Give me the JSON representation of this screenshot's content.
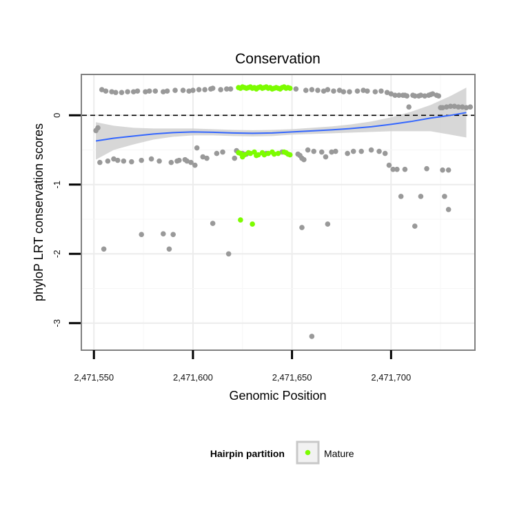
{
  "chart_data": {
    "type": "scatter",
    "title": "Conservation",
    "xlabel": "Genomic Position",
    "ylabel": "phyloP LRT conservation scores",
    "xlim": [
      2471544,
      2471742
    ],
    "ylim": [
      -3.38,
      0.58
    ],
    "x_ticks": [
      2471550,
      2471600,
      2471650,
      2471700
    ],
    "x_tick_labels": [
      "2,471,550",
      "2,471,600",
      "2,471,650",
      "2,471,700"
    ],
    "y_ticks": [
      0,
      -1,
      -2,
      -3
    ],
    "y_tick_labels": [
      "0",
      "-1",
      "-2",
      "-3"
    ],
    "grid": true,
    "reference_line": {
      "y": 0,
      "style": "dashed"
    },
    "legend": {
      "title": "Hairpin partition",
      "position": "bottom",
      "entries": [
        "Mature"
      ]
    },
    "colors": {
      "other": "#999999",
      "mature": "#7cfc00",
      "smooth": "#3366ff",
      "band": "#d0d0d0"
    },
    "series": [
      {
        "points": [
          [
            2471551,
            -0.22
          ],
          [
            2471552,
            -0.18
          ],
          [
            2471553,
            -0.68
          ],
          [
            2471554,
            0.37
          ],
          [
            2471556,
            0.35
          ],
          [
            2471557,
            -0.66
          ],
          [
            2471559,
            0.34
          ],
          [
            2471560,
            -0.63
          ],
          [
            2471561,
            0.33
          ],
          [
            2471562,
            -0.65
          ],
          [
            2471564,
            0.33
          ],
          [
            2471565,
            -0.66
          ],
          [
            2471567,
            0.34
          ],
          [
            2471569,
            -0.67
          ],
          [
            2471570,
            0.34
          ],
          [
            2471572,
            0.35
          ],
          [
            2471574,
            -0.65
          ],
          [
            2471576,
            0.34
          ],
          [
            2471578,
            0.35
          ],
          [
            2471579,
            -0.63
          ],
          [
            2471581,
            0.35
          ],
          [
            2471583,
            -0.66
          ],
          [
            2471585,
            0.34
          ],
          [
            2471587,
            0.35
          ],
          [
            2471589,
            -0.68
          ],
          [
            2471591,
            0.36
          ],
          [
            2471592,
            -0.66
          ],
          [
            2471593,
            -0.65
          ],
          [
            2471595,
            0.36
          ],
          [
            2471596,
            -0.64
          ],
          [
            2471597,
            -0.66
          ],
          [
            2471598,
            0.35
          ],
          [
            2471599,
            -0.68
          ],
          [
            2471600,
            0.36
          ],
          [
            2471601,
            -0.72
          ],
          [
            2471602,
            -0.47
          ],
          [
            2471603,
            0.37
          ],
          [
            2471605,
            -0.6
          ],
          [
            2471606,
            0.37
          ],
          [
            2471607,
            -0.62
          ],
          [
            2471609,
            0.38
          ],
          [
            2471610,
            0.39
          ],
          [
            2471612,
            -0.55
          ],
          [
            2471614,
            0.37
          ],
          [
            2471615,
            -0.53
          ],
          [
            2471617,
            0.38
          ],
          [
            2471619,
            0.38
          ],
          [
            2471621,
            -0.62
          ],
          [
            2471622,
            -0.51
          ],
          [
            2471625,
            -0.55
          ],
          [
            2471627,
            -0.56
          ],
          [
            2471637,
            -0.55
          ],
          [
            2471645,
            -0.53
          ],
          [
            2471652,
            0.38
          ],
          [
            2471653,
            -0.56
          ],
          [
            2471654,
            -0.58
          ],
          [
            2471655,
            -0.62
          ],
          [
            2471656,
            -0.64
          ],
          [
            2471657,
            0.36
          ],
          [
            2471658,
            -0.5
          ],
          [
            2471660,
            0.37
          ],
          [
            2471661,
            -0.52
          ],
          [
            2471663,
            0.36
          ],
          [
            2471665,
            -0.53
          ],
          [
            2471666,
            0.35
          ],
          [
            2471667,
            -0.6
          ],
          [
            2471668,
            0.37
          ],
          [
            2471670,
            -0.53
          ],
          [
            2471671,
            0.35
          ],
          [
            2471672,
            -0.52
          ],
          [
            2471674,
            0.36
          ],
          [
            2471676,
            0.34
          ],
          [
            2471678,
            -0.55
          ],
          [
            2471679,
            0.34
          ],
          [
            2471681,
            -0.52
          ],
          [
            2471683,
            0.35
          ],
          [
            2471685,
            -0.52
          ],
          [
            2471686,
            0.36
          ],
          [
            2471688,
            0.35
          ],
          [
            2471690,
            -0.5
          ],
          [
            2471692,
            0.34
          ],
          [
            2471694,
            -0.52
          ],
          [
            2471695,
            0.35
          ],
          [
            2471697,
            -0.55
          ],
          [
            2471698,
            0.33
          ],
          [
            2471699,
            -0.72
          ],
          [
            2471700,
            0.31
          ],
          [
            2471701,
            -0.78
          ],
          [
            2471702,
            0.29
          ],
          [
            2471703,
            -0.78
          ],
          [
            2471704,
            0.29
          ],
          [
            2471706,
            0.29
          ],
          [
            2471707,
            0.29
          ],
          [
            2471708,
            0.28
          ],
          [
            2471709,
            0.12
          ],
          [
            2471711,
            0.29
          ],
          [
            2471712,
            0.28
          ],
          [
            2471714,
            0.28
          ],
          [
            2471715,
            0.29
          ],
          [
            2471717,
            0.28
          ],
          [
            2471719,
            0.29
          ],
          [
            2471720,
            0.3
          ],
          [
            2471721,
            0.31
          ],
          [
            2471723,
            0.29
          ],
          [
            2471724,
            0.28
          ],
          [
            2471725,
            0.11
          ],
          [
            2471726,
            0.11
          ],
          [
            2471728,
            0.12
          ],
          [
            2471730,
            0.13
          ],
          [
            2471732,
            0.13
          ],
          [
            2471734,
            0.12
          ],
          [
            2471736,
            0.12
          ],
          [
            2471738,
            0.11
          ],
          [
            2471740,
            0.12
          ],
          [
            2471610,
            -1.56
          ],
          [
            2471555,
            -1.93
          ],
          [
            2471574,
            -1.72
          ],
          [
            2471585,
            -1.71
          ],
          [
            2471588,
            -1.93
          ],
          [
            2471590,
            -1.72
          ],
          [
            2471618,
            -2.0
          ],
          [
            2471655,
            -1.62
          ],
          [
            2471668,
            -1.57
          ],
          [
            2471660,
            -3.19
          ],
          [
            2471705,
            -1.17
          ],
          [
            2471715,
            -1.17
          ],
          [
            2471712,
            -1.6
          ],
          [
            2471727,
            -1.17
          ],
          [
            2471729,
            -1.36
          ],
          [
            2471707,
            -0.78
          ],
          [
            2471718,
            -0.77
          ],
          [
            2471726,
            -0.79
          ],
          [
            2471729,
            -0.79
          ]
        ]
      },
      {
        "name": "Mature",
        "points": [
          [
            2471623,
            0.4
          ],
          [
            2471624,
            0.39
          ],
          [
            2471625,
            0.41
          ],
          [
            2471626,
            0.4
          ],
          [
            2471627,
            0.39
          ],
          [
            2471628,
            0.4
          ],
          [
            2471629,
            0.41
          ],
          [
            2471630,
            0.39
          ],
          [
            2471631,
            0.4
          ],
          [
            2471632,
            0.38
          ],
          [
            2471633,
            0.4
          ],
          [
            2471634,
            0.41
          ],
          [
            2471635,
            0.39
          ],
          [
            2471636,
            0.4
          ],
          [
            2471637,
            0.41
          ],
          [
            2471638,
            0.39
          ],
          [
            2471639,
            0.4
          ],
          [
            2471640,
            0.38
          ],
          [
            2471641,
            0.39
          ],
          [
            2471642,
            0.4
          ],
          [
            2471643,
            0.39
          ],
          [
            2471644,
            0.38
          ],
          [
            2471645,
            0.4
          ],
          [
            2471646,
            0.41
          ],
          [
            2471647,
            0.39
          ],
          [
            2471648,
            0.4
          ],
          [
            2471649,
            0.39
          ],
          [
            2471623,
            -0.54
          ],
          [
            2471624,
            -0.55
          ],
          [
            2471625,
            -0.6
          ],
          [
            2471626,
            -0.57
          ],
          [
            2471628,
            -0.54
          ],
          [
            2471629,
            -0.55
          ],
          [
            2471631,
            -0.53
          ],
          [
            2471632,
            -0.58
          ],
          [
            2471633,
            -0.57
          ],
          [
            2471635,
            -0.54
          ],
          [
            2471636,
            -0.57
          ],
          [
            2471638,
            -0.55
          ],
          [
            2471640,
            -0.53
          ],
          [
            2471641,
            -0.56
          ],
          [
            2471643,
            -0.55
          ],
          [
            2471646,
            -0.53
          ],
          [
            2471647,
            -0.54
          ],
          [
            2471648,
            -0.56
          ],
          [
            2471649,
            -0.57
          ],
          [
            2471624,
            -1.51
          ],
          [
            2471630,
            -1.57
          ]
        ]
      }
    ],
    "smooth": {
      "x": [
        2471551,
        2471560,
        2471570,
        2471580,
        2471590,
        2471600,
        2471610,
        2471620,
        2471630,
        2471640,
        2471650,
        2471660,
        2471670,
        2471680,
        2471690,
        2471700,
        2471710,
        2471720,
        2471730,
        2471738
      ],
      "y": [
        -0.37,
        -0.33,
        -0.3,
        -0.27,
        -0.25,
        -0.24,
        -0.245,
        -0.255,
        -0.26,
        -0.255,
        -0.24,
        -0.225,
        -0.21,
        -0.19,
        -0.165,
        -0.13,
        -0.09,
        -0.04,
        0.0,
        0.04
      ],
      "upper": [
        -0.1,
        -0.15,
        -0.18,
        -0.19,
        -0.19,
        -0.19,
        -0.2,
        -0.21,
        -0.215,
        -0.21,
        -0.2,
        -0.18,
        -0.16,
        -0.13,
        -0.09,
        -0.03,
        0.05,
        0.15,
        0.28,
        0.4
      ],
      "lower": [
        -0.64,
        -0.5,
        -0.42,
        -0.35,
        -0.31,
        -0.29,
        -0.29,
        -0.3,
        -0.305,
        -0.3,
        -0.28,
        -0.27,
        -0.26,
        -0.25,
        -0.24,
        -0.23,
        -0.23,
        -0.23,
        -0.28,
        -0.32
      ]
    }
  }
}
